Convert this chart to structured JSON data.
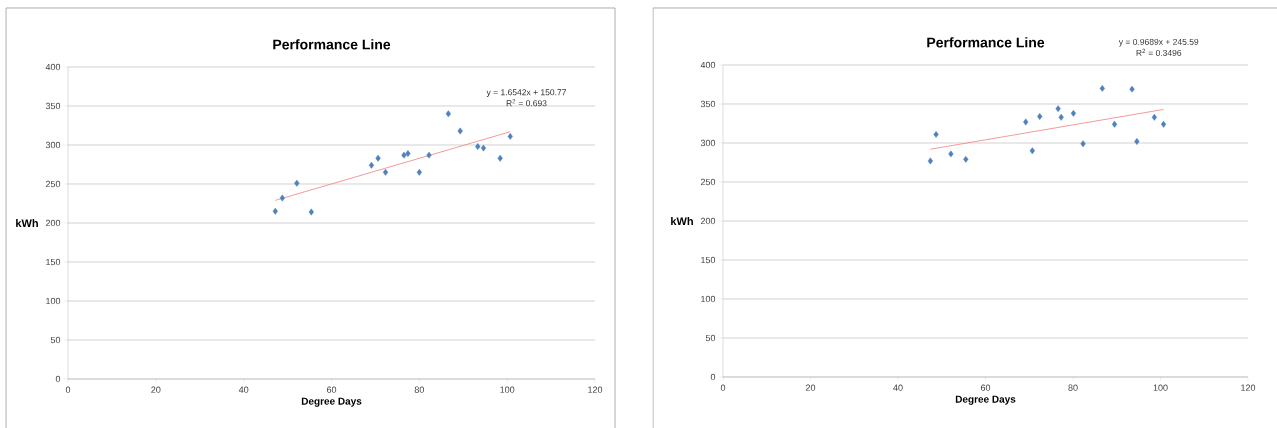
{
  "chart_data": [
    {
      "type": "scatter",
      "title": "Performance Line",
      "xlabel": "Degree Days",
      "ylabel": "kWh",
      "xlim": [
        0,
        120
      ],
      "ylim": [
        0,
        400
      ],
      "xticks": [
        0,
        20,
        40,
        60,
        80,
        100,
        120
      ],
      "yticks": [
        0,
        50,
        100,
        150,
        200,
        250,
        300,
        350,
        400
      ],
      "grid": "y",
      "annotations": [
        "y = 1.6542x + 150.77",
        "R$^{2}$ = 0.693"
      ],
      "series": [
        {
          "color": "#4f81bd",
          "marker": "diamond",
          "x": [
            47.2,
            48.8,
            52.1,
            55.4,
            69.1,
            70.6,
            72.3,
            76.5,
            77.4,
            80.0,
            82.2,
            86.6,
            89.3,
            93.3,
            94.6,
            98.4,
            100.7
          ],
          "values": [
            215,
            232,
            251,
            214,
            274,
            283,
            265,
            287,
            289,
            265,
            287,
            340,
            318,
            298,
            296,
            283,
            311
          ]
        },
        {
          "type": "line",
          "color": "#f08080",
          "marker": "none",
          "line_style": "solid",
          "x": [
            47.2,
            100.7
          ],
          "values": [
            229,
            317
          ]
        }
      ]
    },
    {
      "type": "scatter",
      "title": "Performance Line",
      "xlabel": "Degree Days",
      "ylabel": "kWh",
      "xlim": [
        0,
        120
      ],
      "ylim": [
        0,
        400
      ],
      "xticks": [
        0,
        20,
        40,
        60,
        80,
        100,
        120
      ],
      "yticks": [
        0,
        50,
        100,
        150,
        200,
        250,
        300,
        350,
        400
      ],
      "grid": "y",
      "annotations": [
        "y = 0.9689x + 245.59",
        "R$^{2}$ = 0.3496"
      ],
      "series": [
        {
          "color": "#4f81bd",
          "marker": "diamond",
          "x": [
            47.4,
            48.7,
            52.1,
            55.5,
            69.2,
            70.7,
            72.4,
            76.6,
            77.3,
            80.1,
            82.3,
            86.7,
            89.5,
            93.5,
            94.6,
            98.6,
            100.7
          ],
          "values": [
            277,
            311,
            286,
            279,
            327,
            290,
            334,
            344,
            333,
            338,
            299,
            370,
            324,
            369,
            302,
            333,
            324
          ]
        },
        {
          "type": "line",
          "color": "#f08080",
          "marker": "none",
          "line_style": "solid",
          "x": [
            47.4,
            100.7
          ],
          "values": [
            292,
            343
          ]
        }
      ]
    }
  ]
}
